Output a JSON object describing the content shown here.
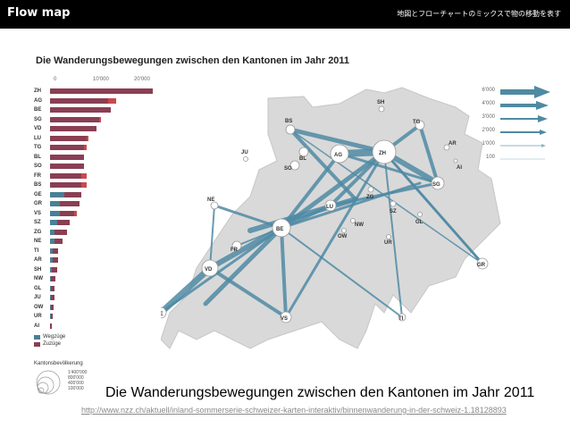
{
  "header": {
    "title": "Flow map",
    "subtitle": "地図とフローチャートのミックスで物の移動を表す"
  },
  "figure": {
    "title": "Die Wanderungsbewegungen zwischen den Kantonen im Jahr 2011",
    "axis_ticks": [
      "0",
      "10'000",
      "20'000"
    ],
    "cantons": [
      {
        "code": "ZH",
        "weg": 0,
        "zu": 21000,
        "extra": 0
      },
      {
        "code": "AG",
        "weg": 0,
        "zu": 12000,
        "extra": 1500
      },
      {
        "code": "BE",
        "weg": 0,
        "zu": 12500,
        "extra": 0
      },
      {
        "code": "SG",
        "weg": 0,
        "zu": 10000,
        "extra": 400
      },
      {
        "code": "VD",
        "weg": 0,
        "zu": 9500,
        "extra": 0
      },
      {
        "code": "LU",
        "weg": 0,
        "zu": 7500,
        "extra": 400
      },
      {
        "code": "TG",
        "weg": 0,
        "zu": 7000,
        "extra": 600
      },
      {
        "code": "BL",
        "weg": 0,
        "zu": 7000,
        "extra": 0
      },
      {
        "code": "SO",
        "weg": 0,
        "zu": 7000,
        "extra": 0
      },
      {
        "code": "FR",
        "weg": 0,
        "zu": 6500,
        "extra": 1000
      },
      {
        "code": "BS",
        "weg": 0,
        "zu": 6500,
        "extra": 1000
      },
      {
        "code": "GE",
        "weg": 3000,
        "zu": 3500,
        "extra": 0
      },
      {
        "code": "GR",
        "weg": 2000,
        "zu": 4000,
        "extra": 0
      },
      {
        "code": "VS",
        "weg": 2000,
        "zu": 3000,
        "extra": 500
      },
      {
        "code": "SZ",
        "weg": 1500,
        "zu": 2500,
        "extra": 0
      },
      {
        "code": "ZG",
        "weg": 1000,
        "zu": 2500,
        "extra": 0
      },
      {
        "code": "NE",
        "weg": 1000,
        "zu": 1500,
        "extra": 0
      },
      {
        "code": "TI",
        "weg": 500,
        "zu": 1200,
        "extra": 0
      },
      {
        "code": "AR",
        "weg": 500,
        "zu": 1200,
        "extra": 0
      },
      {
        "code": "SH",
        "weg": 300,
        "zu": 1100,
        "extra": 0
      },
      {
        "code": "NW",
        "weg": 200,
        "zu": 900,
        "extra": 0
      },
      {
        "code": "GL",
        "weg": 150,
        "zu": 800,
        "extra": 0
      },
      {
        "code": "JU",
        "weg": 150,
        "zu": 700,
        "extra": 0
      },
      {
        "code": "OW",
        "weg": 100,
        "zu": 600,
        "extra": 0
      },
      {
        "code": "UR",
        "weg": 100,
        "zu": 400,
        "extra": 0
      },
      {
        "code": "AI",
        "weg": 50,
        "zu": 250,
        "extra": 0
      }
    ],
    "legend": {
      "wegzuege": "Wegzüge",
      "zuzuege": "Zuzüge",
      "population_title": "Kantonsbevölkerung",
      "population_values": [
        "1'400'000",
        "800'000",
        "400'000",
        "100'000"
      ]
    },
    "flow_legend": [
      "6'000",
      "4'000",
      "3'000",
      "2'000",
      "1'000",
      "100"
    ],
    "map_nodes": [
      "SH",
      "BS",
      "BL",
      "AG",
      "ZH",
      "TG",
      "AR",
      "AI",
      "SO",
      "JU",
      "LU",
      "ZG",
      "SZ",
      "SG",
      "NE",
      "BE",
      "NW",
      "OW",
      "GL",
      "UR",
      "FR",
      "VD",
      "GR",
      "GE",
      "VS",
      "TI"
    ]
  },
  "caption": {
    "text": "Die Wanderungsbewegungen zwischen den Kantonen im Jahr 2011",
    "link": "http://www.nzz.ch/aktuell/inland-sommerserie-schweizer-karten-interaktiv/binnenwanderung-in-der-schweiz-1.18128893"
  },
  "colors": {
    "topbar": "#000000",
    "zuzuege": "#8a3f53",
    "wegzuege": "#4a7f95",
    "highlight": "#c9494d",
    "flow": "#4f8aa3",
    "map_land": "#d9d9d9"
  }
}
